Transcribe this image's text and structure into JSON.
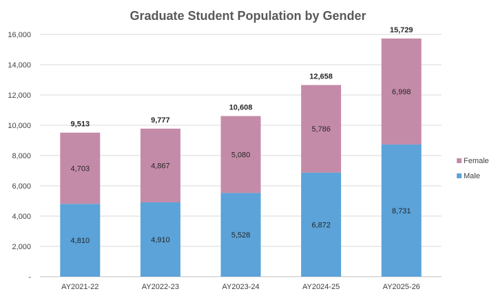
{
  "chart_data": {
    "type": "bar",
    "stacked": true,
    "title": "Graduate Student Population by Gender",
    "xlabel": "",
    "ylabel": "",
    "categories": [
      "AY2021-22",
      "AY2022-23",
      "AY2023-24",
      "AY2024-25",
      "AY2025-26"
    ],
    "series": [
      {
        "name": "Male",
        "values": [
          4810,
          4910,
          5528,
          6872,
          8731
        ],
        "labels": [
          "4,810",
          "4,910",
          "5,528",
          "6,872",
          "8,731"
        ],
        "color": "#5BA3D9"
      },
      {
        "name": "Female",
        "values": [
          4703,
          4867,
          5080,
          5786,
          6998
        ],
        "labels": [
          "4,703",
          "4,867",
          "5,080",
          "5,786",
          "6,998"
        ],
        "color": "#C48BA8"
      }
    ],
    "totals": [
      9513,
      9777,
      10608,
      12658,
      15729
    ],
    "total_labels": [
      "9,513",
      "9,777",
      "10,608",
      "12,658",
      "15,729"
    ],
    "ylim": [
      0,
      16000
    ],
    "yticks": [
      0,
      2000,
      4000,
      6000,
      8000,
      10000,
      12000,
      14000,
      16000
    ],
    "ytick_labels": [
      "-",
      "2,000",
      "4,000",
      "6,000",
      "8,000",
      "10,000",
      "12,000",
      "14,000",
      "16,000"
    ],
    "grid": true,
    "legend_position": "right",
    "legend_items": [
      "Female",
      "Male"
    ]
  }
}
